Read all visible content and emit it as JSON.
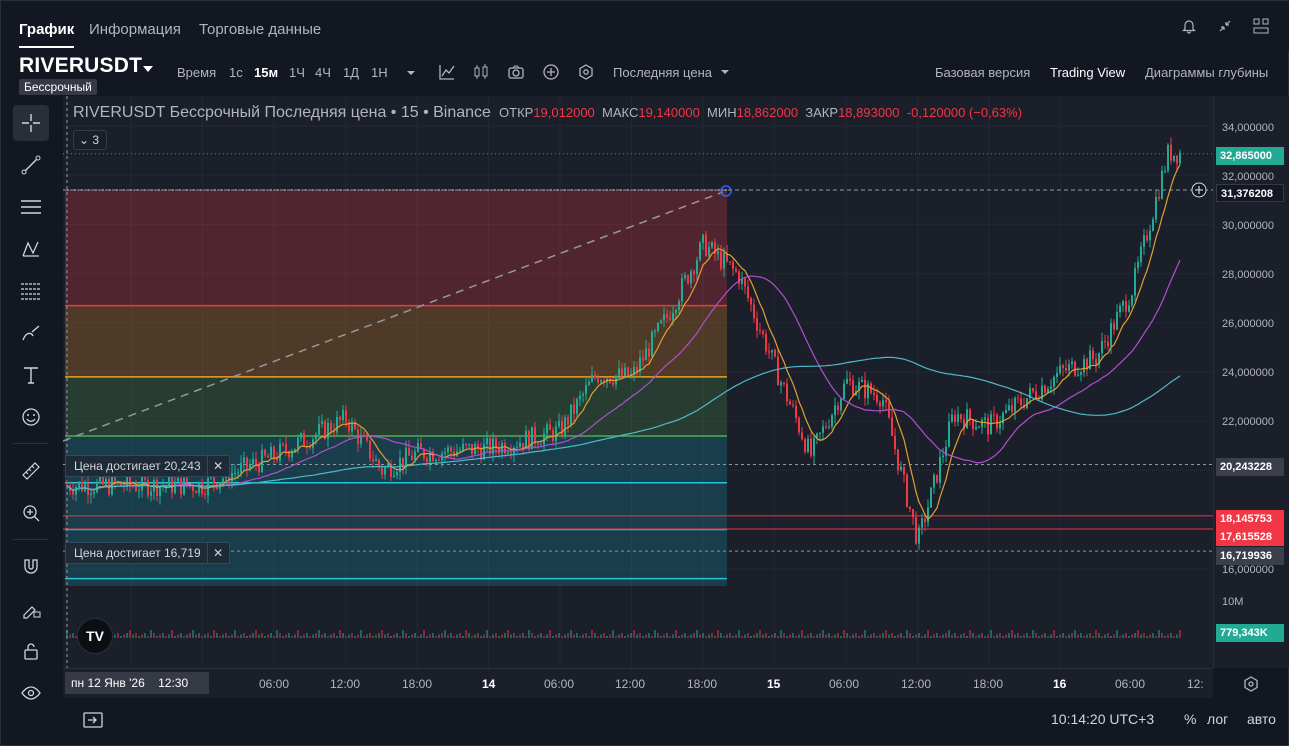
{
  "tabs": [
    "График",
    "Информация",
    "Торговые данные"
  ],
  "header": {
    "symbol": "RIVERUSDT",
    "contract_badge": "Бессрочный",
    "timeframes": [
      "Время",
      "1с",
      "15м",
      "1Ч",
      "4Ч",
      "1Д",
      "1Н"
    ],
    "price_type": "Последняя цена",
    "views": [
      "Базовая версия",
      "Trading View",
      "Диаграммы глубины"
    ]
  },
  "legend": {
    "title": "RIVERUSDT Бессрочный Последняя цена • 15 • Binance",
    "open_label": "ОТКР",
    "open": "19,012000",
    "high_label": "МАКС",
    "high": "19,140000",
    "low_label": "МИН",
    "low": "18,862000",
    "close_label": "ЗАКР",
    "close": "18,893000",
    "change": "-0,120000 (−0,63%)",
    "indicators_count": "3"
  },
  "alerts": [
    "Цена достигает 20,243",
    "Цена достигает 16,719"
  ],
  "price_scale": {
    "ticks": [
      "34,000000",
      "32,000000",
      "30,000000",
      "28,000000",
      "26,000000",
      "24,000000",
      "22,000000",
      "16,000000",
      "10M"
    ],
    "last_price": "32,865000",
    "crosshair_price": "31,376208",
    "alert_high": "20,243228",
    "level_1": "18,145753",
    "level_2": "17,615528",
    "alert_low": "16,719936",
    "volume": "779,343K"
  },
  "time_scale": {
    "cursor": "пн 12 Янв '26",
    "cursor_time": "12:30",
    "labels": [
      "06:00",
      "12:00",
      "18:00",
      "14",
      "06:00",
      "12:00",
      "18:00",
      "15",
      "06:00",
      "12:00",
      "18:00",
      "16",
      "06:00",
      "12:"
    ]
  },
  "bottom": {
    "clock": "10:14:20 UTC+3",
    "percent": "%",
    "log": "лог",
    "auto": "авто"
  },
  "logo_text": "TV",
  "colors": {
    "up": "#22ab94",
    "down": "#f23645",
    "ma_fast": "#e0a030",
    "ma_mid": "#b04fd0",
    "ma_slow": "#4fb9c6"
  },
  "chart_data": {
    "type": "candlestick",
    "title": "RIVERUSDT Бессрочный Последняя цена • 15 • Binance",
    "ylim": [
      15,
      35
    ],
    "x_labels": [
      "06:00",
      "12:00",
      "18:00",
      "14",
      "06:00",
      "12:00",
      "18:00",
      "15",
      "06:00",
      "12:00",
      "18:00",
      "16",
      "06:00"
    ],
    "close_path": [
      {
        "t": "13 00:00",
        "p": 19.4
      },
      {
        "t": "13 06:00",
        "p": 20.6
      },
      {
        "t": "13 12:00",
        "p": 22.1
      },
      {
        "t": "13 15:00",
        "p": 20.0
      },
      {
        "t": "13 18:00",
        "p": 20.7
      },
      {
        "t": "14 00:00",
        "p": 20.9
      },
      {
        "t": "14 06:00",
        "p": 21.6
      },
      {
        "t": "14 09:00",
        "p": 23.9
      },
      {
        "t": "14 12:00",
        "p": 23.8
      },
      {
        "t": "14 15:00",
        "p": 26.3
      },
      {
        "t": "14 18:00",
        "p": 29.2
      },
      {
        "t": "14 21:00",
        "p": 27.9
      },
      {
        "t": "15 00:00",
        "p": 24.2
      },
      {
        "t": "15 03:00",
        "p": 20.6
      },
      {
        "t": "15 06:00",
        "p": 23.6
      },
      {
        "t": "15 09:00",
        "p": 23.0
      },
      {
        "t": "15 12:00",
        "p": 17.1
      },
      {
        "t": "15 15:00",
        "p": 22.3
      },
      {
        "t": "15 18:00",
        "p": 21.8
      },
      {
        "t": "16 00:00",
        "p": 24.0
      },
      {
        "t": "16 03:00",
        "p": 24.6
      },
      {
        "t": "16 06:00",
        "p": 27.4
      },
      {
        "t": "16 09:00",
        "p": 32.9
      }
    ],
    "levels": [
      21.4,
      23.8,
      26.7,
      31.4,
      20.24,
      18.15,
      17.62,
      16.72
    ]
  }
}
